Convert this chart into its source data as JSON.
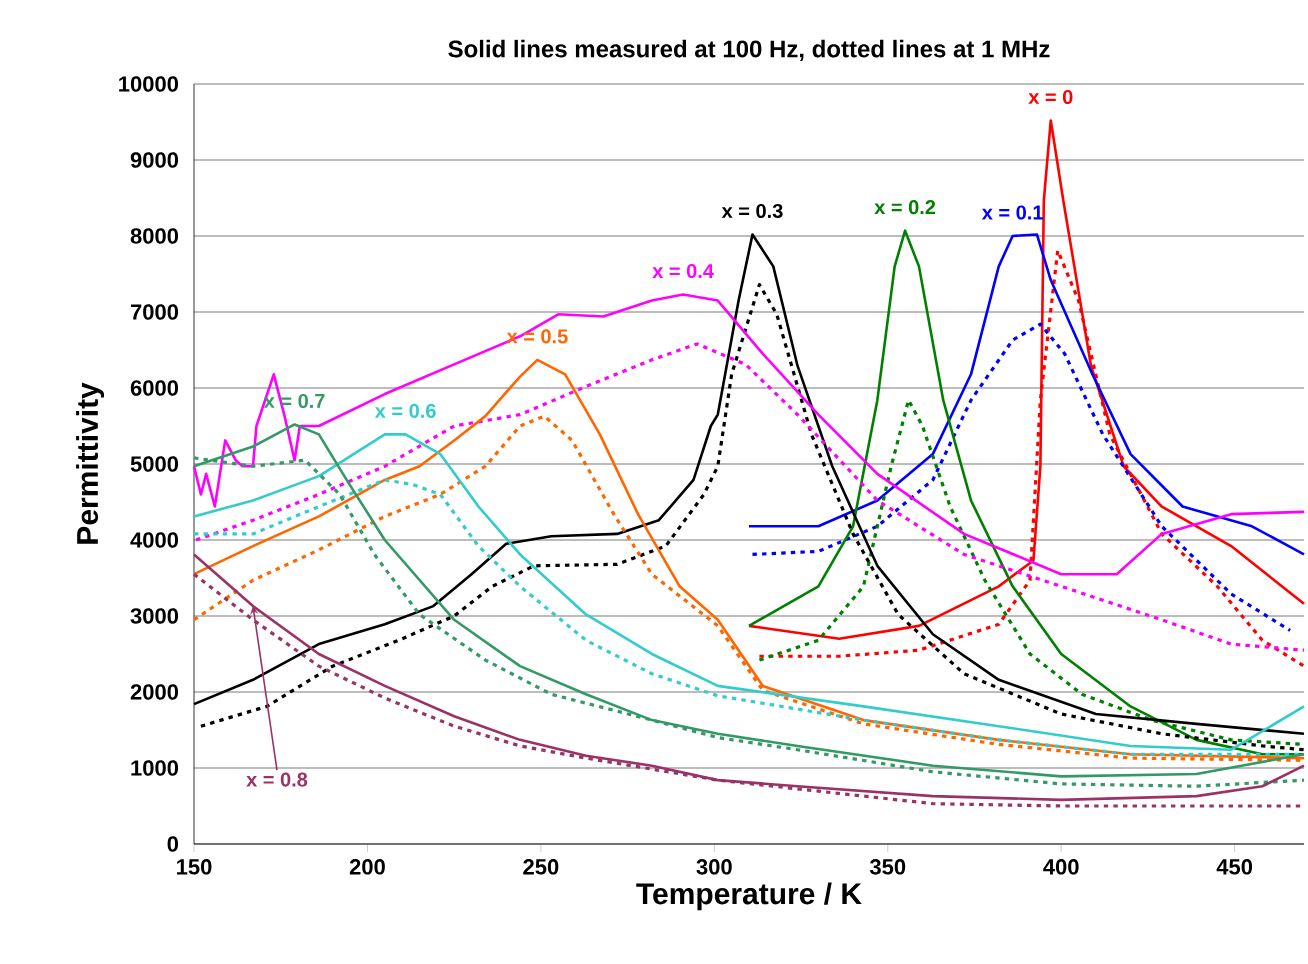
{
  "chart_data": {
    "type": "line",
    "title": "Solid lines measured at 100 Hz, dotted lines at 1 MHz",
    "xlabel": "Temperature / K",
    "ylabel": "Permittivity",
    "xlim": [
      150,
      470
    ],
    "xticks": [
      150,
      200,
      250,
      300,
      350,
      400,
      450
    ],
    "ylim": [
      0,
      10000
    ],
    "yticks": [
      0,
      1000,
      2000,
      3000,
      4000,
      5000,
      6000,
      7000,
      8000,
      9000,
      10000
    ],
    "grid": "y",
    "marker": "none",
    "series": [
      {
        "color": "#ff0000",
        "line_style": "solid",
        "x": [
          310,
          336,
          359,
          382,
          392,
          394,
          395,
          397,
          400.6,
          408.6,
          418,
          429,
          449,
          470
        ],
        "values": [
          2870,
          2700,
          2870,
          3390,
          3730,
          4970,
          8470,
          9520,
          8470,
          6290,
          4970,
          4440,
          3920,
          3160
        ]
      },
      {
        "color": "#ff0000",
        "line_style": "dotted",
        "x": [
          313,
          336,
          359,
          382,
          391,
          394,
          399,
          405,
          414,
          429,
          445,
          458,
          470
        ],
        "values": [
          2470,
          2470,
          2550,
          2890,
          3470,
          5840,
          7810,
          7150,
          5390,
          4080,
          3390,
          2680,
          2340
        ]
      },
      {
        "color": "#0000ff",
        "line_style": "solid",
        "x": [
          310,
          330,
          347,
          363,
          374,
          382,
          386,
          393,
          397,
          409,
          420,
          435,
          455,
          470
        ],
        "values": [
          4180,
          4180,
          4520,
          5130,
          6180,
          7600,
          8000,
          8020,
          7420,
          6180,
          5130,
          4440,
          4180,
          3810
        ]
      },
      {
        "color": "#0000ff",
        "line_style": "dotted",
        "x": [
          311,
          330,
          347,
          363,
          374,
          386,
          394,
          401,
          412,
          429,
          449,
          466
        ],
        "values": [
          3810,
          3850,
          4180,
          4790,
          5840,
          6630,
          6840,
          6450,
          5390,
          4180,
          3290,
          2810
        ]
      },
      {
        "color": "#008000",
        "line_style": "solid",
        "x": [
          310,
          330,
          340,
          347,
          352,
          355,
          359,
          366,
          374,
          386,
          400,
          420,
          439,
          458,
          470
        ],
        "values": [
          2870,
          3390,
          4180,
          5840,
          7600,
          8070,
          7600,
          5840,
          4520,
          3390,
          2500,
          1810,
          1370,
          1180,
          1180
        ]
      },
      {
        "color": "#008000",
        "line_style": "dotted",
        "x": [
          313,
          330,
          343,
          351,
          356,
          360,
          368,
          378,
          391,
          406,
          426,
          449,
          470
        ],
        "values": [
          2420,
          2680,
          3390,
          4970,
          5840,
          5500,
          4440,
          3470,
          2500,
          1970,
          1630,
          1370,
          1310
        ]
      },
      {
        "color": "#000000",
        "line_style": "solid",
        "x": [
          150,
          167,
          186,
          205,
          219,
          230,
          240,
          253,
          272,
          284,
          294,
          299,
          301,
          307,
          311,
          317,
          324,
          334,
          347,
          363,
          382,
          410,
          439,
          470
        ],
        "values": [
          1840,
          2160,
          2630,
          2890,
          3130,
          3550,
          3950,
          4050,
          4080,
          4260,
          4790,
          5500,
          5650,
          7150,
          8020,
          7600,
          6290,
          4970,
          3660,
          2760,
          2160,
          1710,
          1580,
          1450
        ]
      },
      {
        "color": "#000000",
        "line_style": "dotted",
        "x": [
          152,
          171,
          190,
          209,
          225,
          236,
          248,
          272,
          286,
          297,
          301,
          305,
          313,
          318,
          328,
          340,
          353,
          372,
          400,
          429,
          458,
          470
        ],
        "values": [
          1550,
          1810,
          2340,
          2680,
          3000,
          3390,
          3660,
          3680,
          3920,
          4600,
          4970,
          6180,
          7360,
          6970,
          5390,
          4080,
          3020,
          2240,
          1710,
          1450,
          1290,
          1240
        ]
      },
      {
        "color": "#ff00ff",
        "line_style": "solid",
        "x": [
          150,
          152,
          153.5,
          156,
          159,
          162,
          164,
          167,
          168,
          173,
          176,
          179,
          180.5,
          186,
          205,
          225,
          244,
          255,
          268,
          282,
          291,
          301,
          314,
          330,
          347,
          372,
          400,
          416,
          429,
          449,
          470
        ],
        "values": [
          4970,
          4600,
          4870,
          4440,
          5310,
          5050,
          4970,
          4970,
          5500,
          6180,
          5650,
          5050,
          5500,
          5500,
          5920,
          6310,
          6680,
          6970,
          6940,
          7150,
          7230,
          7150,
          6450,
          5650,
          4870,
          4080,
          3550,
          3550,
          4080,
          4340,
          4370
        ]
      },
      {
        "color": "#ff00ff",
        "line_style": "dotted",
        "x": [
          150.6,
          167,
          186,
          205,
          225,
          244,
          263,
          282,
          295,
          309,
          324,
          347,
          372,
          400,
          429,
          449,
          470
        ],
        "values": [
          4000,
          4260,
          4600,
          4970,
          5500,
          5650,
          6020,
          6370,
          6580,
          6310,
          5650,
          4520,
          3810,
          3390,
          2950,
          2630,
          2550
        ]
      },
      {
        "color": "#ff6600",
        "line_style": "solid",
        "x": [
          150,
          167,
          186,
          205,
          215,
          225,
          234,
          244,
          249,
          257,
          267,
          278,
          290,
          301,
          314,
          343,
          382,
          420,
          470
        ],
        "values": [
          3550,
          3920,
          4310,
          4790,
          4970,
          5310,
          5630,
          6150,
          6370,
          6180,
          5390,
          4340,
          3390,
          2950,
          2080,
          1630,
          1370,
          1180,
          1130
        ]
      },
      {
        "color": "#ff6600",
        "line_style": "dotted",
        "x": [
          150,
          167,
          186,
          205,
          221,
          234,
          244,
          251,
          259,
          271,
          282,
          301,
          314,
          343,
          382,
          420,
          470
        ],
        "values": [
          2950,
          3470,
          3870,
          4310,
          4600,
          4970,
          5500,
          5630,
          5310,
          4340,
          3550,
          2870,
          2020,
          1580,
          1310,
          1130,
          1100
        ]
      },
      {
        "color": "#33cccc",
        "line_style": "solid",
        "x": [
          150,
          167,
          186,
          196,
          205,
          211,
          221,
          232,
          244,
          263,
          282,
          301,
          343,
          382,
          420,
          449,
          470
        ],
        "values": [
          4310,
          4520,
          4840,
          5130,
          5390,
          5390,
          5130,
          4440,
          3810,
          3020,
          2500,
          2080,
          1810,
          1550,
          1290,
          1240,
          1810
        ]
      },
      {
        "color": "#33cccc",
        "line_style": "dotted",
        "x": [
          150,
          167,
          186,
          205,
          213,
          221,
          232,
          244,
          263,
          282,
          301,
          343,
          382,
          420,
          470
        ],
        "values": [
          4080,
          4080,
          4440,
          4790,
          4730,
          4600,
          3920,
          3390,
          2680,
          2240,
          1950,
          1630,
          1370,
          1180,
          1180
        ]
      },
      {
        "color": "#339966",
        "line_style": "solid",
        "x": [
          150,
          167,
          179,
          186,
          194,
          205,
          225,
          244,
          263,
          282,
          301,
          324,
          363,
          400,
          439,
          470
        ],
        "values": [
          4970,
          5230,
          5520,
          5390,
          4790,
          4000,
          2950,
          2340,
          1970,
          1630,
          1450,
          1290,
          1030,
          890,
          920,
          1180
        ]
      },
      {
        "color": "#339966",
        "line_style": "dotted",
        "x": [
          150,
          167,
          182,
          192,
          202,
          215,
          234,
          253,
          282,
          301,
          324,
          363,
          400,
          439,
          470
        ],
        "values": [
          5080,
          4970,
          5050,
          4600,
          3810,
          3020,
          2420,
          1970,
          1630,
          1400,
          1240,
          950,
          790,
          760,
          840
        ]
      },
      {
        "color": "#993366",
        "line_style": "solid",
        "x": [
          150,
          167,
          186,
          205,
          225,
          244,
          263,
          282,
          301,
          324,
          363,
          400,
          439,
          458,
          470
        ],
        "values": [
          3810,
          3130,
          2500,
          2080,
          1680,
          1370,
          1160,
          1030,
          840,
          760,
          630,
          580,
          630,
          760,
          1030
        ]
      },
      {
        "color": "#993366",
        "line_style": "dotted",
        "x": [
          150,
          167,
          186,
          205,
          225,
          244,
          263,
          301,
          363,
          400,
          439,
          470
        ],
        "values": [
          3550,
          2950,
          2340,
          1920,
          1550,
          1290,
          1130,
          840,
          530,
          500,
          500,
          500
        ]
      }
    ],
    "annotations": [
      {
        "text": "x = 0",
        "x": 397,
        "y": 9520
      },
      {
        "text": "x = 0.1",
        "x": 386,
        "y": 8000
      },
      {
        "text": "x = 0.2",
        "x": 355,
        "y": 8070
      },
      {
        "text": "x = 0.3",
        "x": 311,
        "y": 8020
      },
      {
        "text": "x = 0.4",
        "x": 291,
        "y": 7230
      },
      {
        "text": "x = 0.5",
        "x": 249,
        "y": 6370
      },
      {
        "text": "x = 0.6",
        "x": 211,
        "y": 5390
      },
      {
        "text": "x = 0.7",
        "x": 179,
        "y": 5520
      },
      {
        "text": "x = 0.8",
        "x": 167,
        "y": 3130
      }
    ]
  }
}
